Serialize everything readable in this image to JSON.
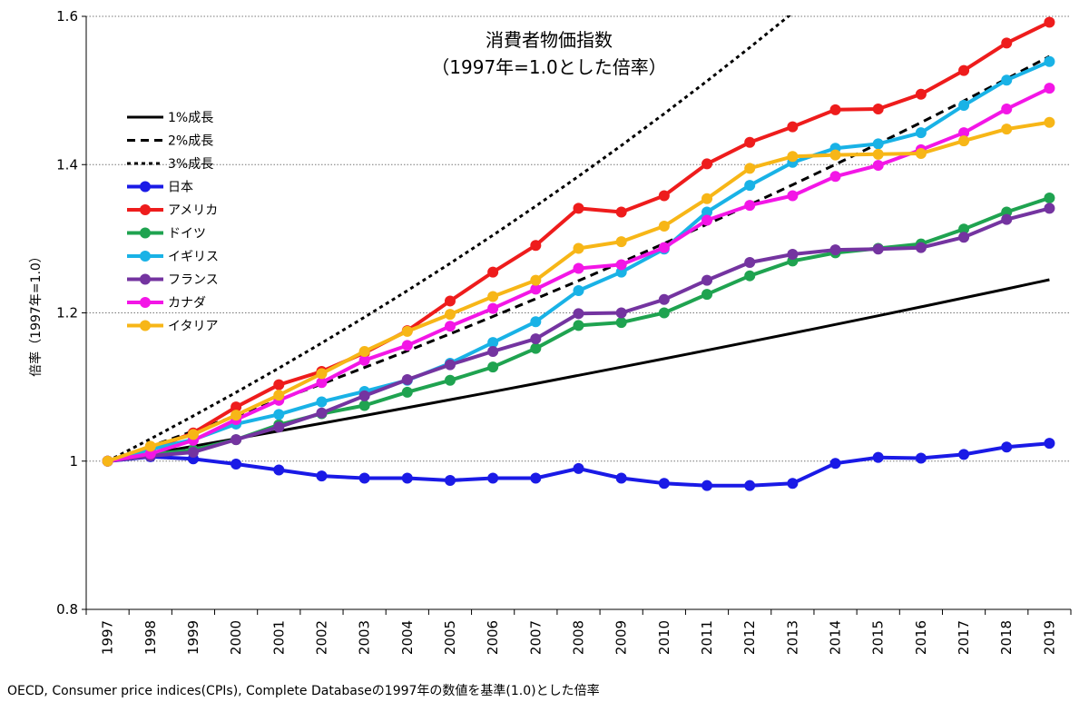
{
  "chart_data": {
    "type": "line",
    "title": "消費者物価指数",
    "subtitle": "（1997年=1.0とした倍率）",
    "ylabel": "倍率（1997年=1.0）",
    "xlabel": "",
    "ylim": [
      0.8,
      1.6
    ],
    "yticks": [
      0.8,
      1.0,
      1.2,
      1.4,
      1.6
    ],
    "ytick_labels": [
      "0.8",
      "1",
      "1.2",
      "1.4",
      "1.6"
    ],
    "grid": "horizontal dotted",
    "legend_position": "upper-left",
    "categories": [
      "1997",
      "1998",
      "1999",
      "2000",
      "2001",
      "2002",
      "2003",
      "2004",
      "2005",
      "2006",
      "2007",
      "2008",
      "2009",
      "2010",
      "2011",
      "2012",
      "2013",
      "2014",
      "2015",
      "2016",
      "2017",
      "2018",
      "2019"
    ],
    "series": [
      {
        "name": "1%成長",
        "color": "#000000",
        "style": "solid",
        "markers": false,
        "values": [
          1.0,
          1.01,
          1.0201,
          1.0303,
          1.0406,
          1.051,
          1.0615,
          1.0721,
          1.0829,
          1.0937,
          1.1046,
          1.1157,
          1.1268,
          1.1381,
          1.1495,
          1.161,
          1.1726,
          1.1843,
          1.1961,
          1.2081,
          1.2202,
          1.2324,
          1.2447
        ]
      },
      {
        "name": "2%成長",
        "color": "#000000",
        "style": "dashed",
        "markers": false,
        "values": [
          1.0,
          1.02,
          1.0404,
          1.0612,
          1.0824,
          1.1041,
          1.1262,
          1.1487,
          1.1717,
          1.1951,
          1.219,
          1.2434,
          1.2682,
          1.2936,
          1.3195,
          1.3459,
          1.3728,
          1.4002,
          1.4282,
          1.4568,
          1.4859,
          1.5157,
          1.546
        ]
      },
      {
        "name": "3%成長",
        "color": "#000000",
        "style": "dotted",
        "markers": false,
        "values": [
          1.0,
          1.03,
          1.0609,
          1.0927,
          1.1255,
          1.1593,
          1.1941,
          1.2299,
          1.2668,
          1.3048,
          1.3439,
          1.3842,
          1.4258,
          1.4685,
          1.5126,
          1.558,
          1.6047,
          null,
          null,
          null,
          null,
          null,
          null
        ]
      },
      {
        "name": "日本",
        "color": "#1a1ae6",
        "style": "solid",
        "markers": true,
        "values": [
          1.0,
          1.006,
          1.003,
          0.996,
          0.988,
          0.98,
          0.977,
          0.977,
          0.974,
          0.977,
          0.977,
          0.99,
          0.977,
          0.97,
          0.967,
          0.967,
          0.97,
          0.997,
          1.005,
          1.004,
          1.009,
          1.019,
          1.024
        ]
      },
      {
        "name": "アメリカ",
        "color": "#ee1c1c",
        "style": "solid",
        "markers": true,
        "values": [
          1.0,
          1.016,
          1.038,
          1.073,
          1.103,
          1.121,
          1.146,
          1.176,
          1.216,
          1.255,
          1.291,
          1.341,
          1.336,
          1.358,
          1.401,
          1.43,
          1.451,
          1.474,
          1.475,
          1.495,
          1.527,
          1.564,
          1.592
        ]
      },
      {
        "name": "ドイツ",
        "color": "#1fa350",
        "style": "solid",
        "markers": true,
        "values": [
          1.0,
          1.009,
          1.015,
          1.029,
          1.049,
          1.064,
          1.075,
          1.093,
          1.109,
          1.127,
          1.152,
          1.183,
          1.187,
          1.2,
          1.225,
          1.25,
          1.27,
          1.281,
          1.287,
          1.293,
          1.313,
          1.336,
          1.355
        ]
      },
      {
        "name": "イギリス",
        "color": "#19b2e6",
        "style": "solid",
        "markers": true,
        "values": [
          1.0,
          1.016,
          1.029,
          1.05,
          1.063,
          1.08,
          1.094,
          1.109,
          1.132,
          1.16,
          1.188,
          1.23,
          1.255,
          1.286,
          1.336,
          1.372,
          1.403,
          1.422,
          1.428,
          1.443,
          1.48,
          1.514,
          1.539
        ]
      },
      {
        "name": "フランス",
        "color": "#7434a0",
        "style": "solid",
        "markers": true,
        "values": [
          1.0,
          1.007,
          1.012,
          1.029,
          1.046,
          1.065,
          1.088,
          1.11,
          1.13,
          1.148,
          1.165,
          1.199,
          1.2,
          1.218,
          1.244,
          1.268,
          1.279,
          1.285,
          1.286,
          1.288,
          1.302,
          1.326,
          1.341
        ]
      },
      {
        "name": "カナダ",
        "color": "#f316e6",
        "style": "solid",
        "markers": true,
        "values": [
          1.0,
          1.01,
          1.028,
          1.056,
          1.082,
          1.106,
          1.136,
          1.156,
          1.182,
          1.206,
          1.232,
          1.26,
          1.265,
          1.288,
          1.325,
          1.345,
          1.358,
          1.384,
          1.399,
          1.42,
          1.443,
          1.475,
          1.503
        ]
      },
      {
        "name": "イタリア",
        "color": "#f7b617",
        "style": "solid",
        "markers": true,
        "values": [
          1.0,
          1.02,
          1.036,
          1.062,
          1.089,
          1.118,
          1.148,
          1.175,
          1.198,
          1.222,
          1.244,
          1.287,
          1.296,
          1.317,
          1.354,
          1.395,
          1.411,
          1.413,
          1.414,
          1.415,
          1.432,
          1.448,
          1.457
        ]
      }
    ]
  },
  "source": "OECD, Consumer price indices(CPIs), Complete Databaseの1997年の数値を基準(1.0)とした倍率"
}
